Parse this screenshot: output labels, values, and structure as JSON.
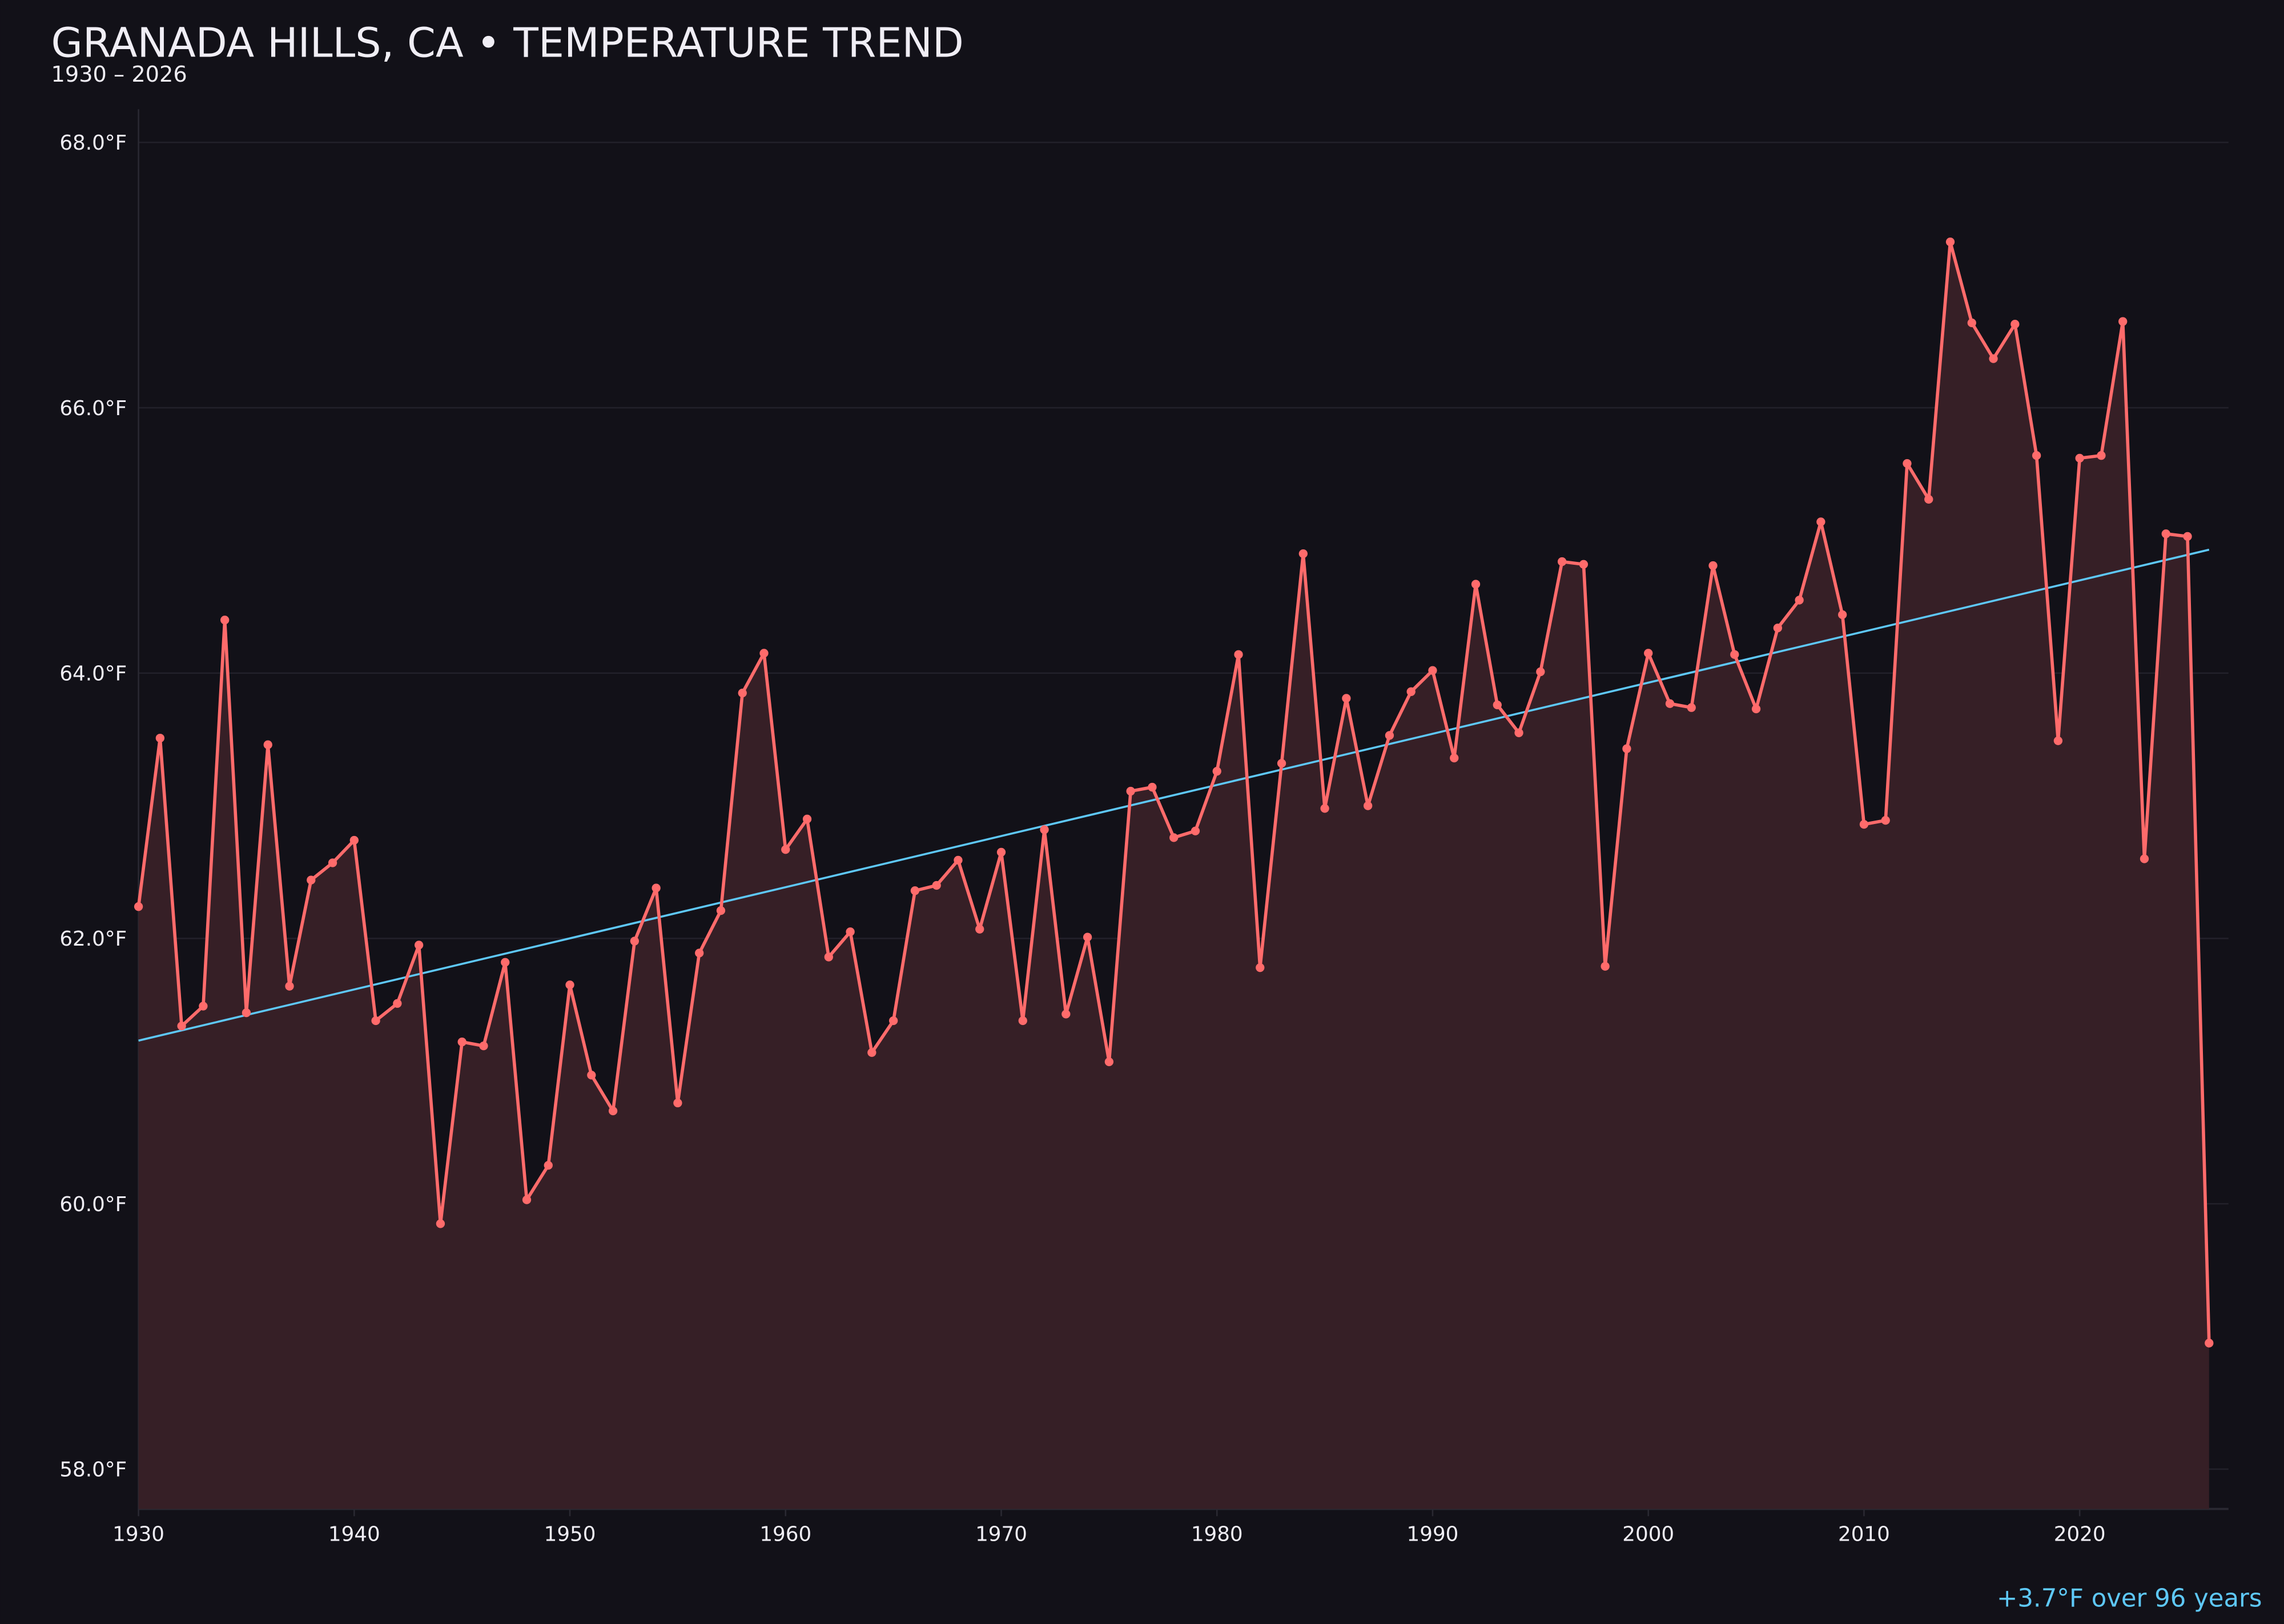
{
  "title": "GRANADA HILLS, CA • TEMPERATURE TREND",
  "subtitle": "1930 – 2026",
  "trend_label": "+3.7°F over 96 years",
  "colors": {
    "background": "#121118",
    "series": "#ff6b6b",
    "fill": "#361f26",
    "trend": "#5ec8f8",
    "text": "#f0eef5",
    "grid": "#22212a"
  },
  "chart_data": {
    "type": "line",
    "title": "GRANADA HILLS, CA • TEMPERATURE TREND",
    "subtitle": "1930 – 2026",
    "xlabel": "",
    "ylabel": "",
    "xlim": [
      1930,
      2026.9
    ],
    "ylim": [
      57.7,
      68.25
    ],
    "grid": true,
    "x_ticks": [
      "1930",
      "1940",
      "1950",
      "1960",
      "1970",
      "1980",
      "1990",
      "2000",
      "2010",
      "2020"
    ],
    "y_ticks": [
      "58.0°F",
      "60.0°F",
      "62.0°F",
      "64.0°F",
      "66.0°F",
      "68.0°F"
    ],
    "y_tick_values": [
      58,
      60,
      62,
      64,
      66,
      68
    ],
    "x_tick_values": [
      1930,
      1940,
      1950,
      1960,
      1970,
      1980,
      1990,
      2000,
      2010,
      2020
    ],
    "x": [
      1930,
      1931,
      1932,
      1933,
      1934,
      1935,
      1936,
      1937,
      1938,
      1939,
      1940,
      1941,
      1942,
      1943,
      1944,
      1945,
      1946,
      1947,
      1948,
      1949,
      1950,
      1951,
      1952,
      1953,
      1954,
      1955,
      1956,
      1957,
      1958,
      1959,
      1960,
      1961,
      1962,
      1963,
      1964,
      1965,
      1966,
      1967,
      1968,
      1969,
      1970,
      1971,
      1972,
      1973,
      1974,
      1975,
      1976,
      1977,
      1978,
      1979,
      1980,
      1981,
      1982,
      1983,
      1984,
      1985,
      1986,
      1987,
      1988,
      1989,
      1990,
      1991,
      1992,
      1993,
      1994,
      1995,
      1996,
      1997,
      1998,
      1999,
      2000,
      2001,
      2002,
      2003,
      2004,
      2005,
      2006,
      2007,
      2008,
      2009,
      2010,
      2011,
      2012,
      2013,
      2014,
      2015,
      2016,
      2017,
      2018,
      2019,
      2020,
      2021,
      2022,
      2023,
      2024,
      2025,
      2026
    ],
    "series": [
      {
        "values": [
          62.24,
          63.51,
          61.34,
          61.49,
          64.4,
          61.44,
          63.46,
          61.64,
          62.44,
          62.57,
          62.74,
          61.38,
          61.51,
          61.95,
          59.85,
          61.22,
          61.19,
          61.82,
          60.03,
          60.29,
          61.65,
          60.97,
          60.7,
          61.98,
          62.38,
          60.76,
          61.89,
          62.21,
          63.85,
          64.15,
          62.67,
          62.9,
          61.86,
          62.05,
          61.14,
          61.38,
          62.36,
          62.4,
          62.59,
          62.07,
          62.65,
          61.38,
          62.82,
          61.43,
          62.01,
          61.07,
          63.11,
          63.14,
          62.76,
          62.81,
          63.26,
          64.14,
          61.78,
          63.32,
          64.9,
          62.98,
          63.81,
          63.0,
          63.53,
          63.86,
          64.02,
          63.36,
          64.67,
          63.76,
          63.55,
          64.01,
          64.84,
          64.82,
          61.79,
          63.43,
          64.15,
          63.77,
          63.74,
          64.81,
          64.14,
          63.73,
          64.34,
          64.55,
          65.14,
          64.44,
          62.86,
          62.89,
          65.58,
          65.31,
          67.25,
          66.64,
          66.37,
          66.63,
          65.64,
          63.49,
          65.62,
          65.64,
          66.65,
          62.6,
          65.05,
          65.03,
          58.95
        ]
      }
    ],
    "trend": {
      "x": [
        1930,
        2026
      ],
      "y": [
        61.23,
        64.93
      ]
    },
    "annotation": "+3.7°F over 96 years"
  }
}
